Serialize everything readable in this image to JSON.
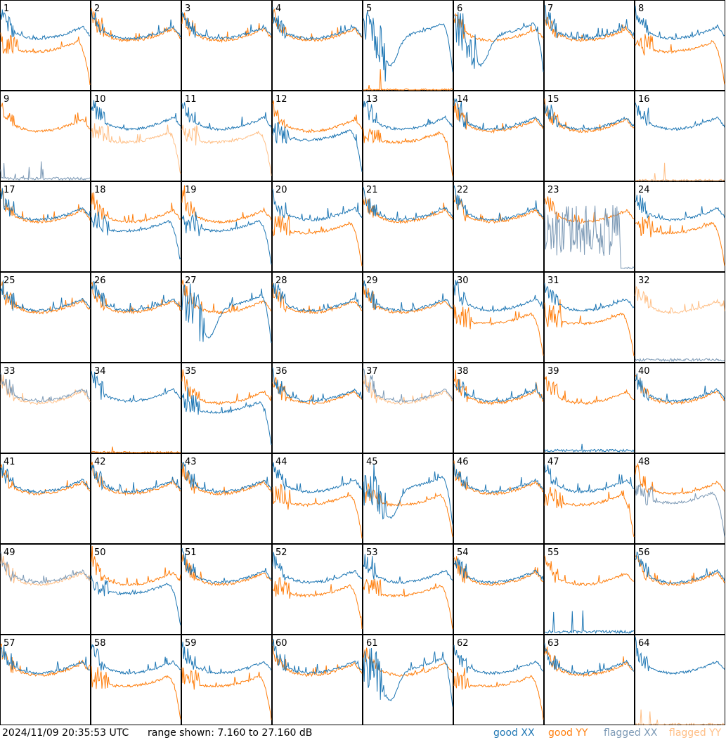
{
  "footer": {
    "timestamp": "2024/11/09 20:35:53 UTC",
    "range": "range shown: 7.160 to 27.160 dB"
  },
  "legend": {
    "good_xx": "good XX",
    "good_yy": "good YY",
    "flagged_xx": "flagged XX",
    "flagged_yy": "flagged YY"
  },
  "colors": {
    "good_xx": "#1f77b4",
    "good_yy": "#ff7f0e",
    "flagged_xx": "#7d9ab6",
    "flagged_yy": "#ffbf86"
  },
  "chart_data": {
    "type": "line",
    "layout": "8x8 small multiples",
    "ylim": [
      7.16,
      27.16
    ],
    "yunit": "dB",
    "panels": [
      {
        "label": "1",
        "xx": "good",
        "yy": "good",
        "xx_shape": "normal",
        "yy_shape": "low"
      },
      {
        "label": "2",
        "xx": "good",
        "yy": "good",
        "xx_shape": "normal",
        "yy_shape": "normal"
      },
      {
        "label": "3",
        "xx": "good",
        "yy": "good",
        "xx_shape": "normal",
        "yy_shape": "normal"
      },
      {
        "label": "4",
        "xx": "good",
        "yy": "good",
        "xx_shape": "normal",
        "yy_shape": "normal"
      },
      {
        "label": "5",
        "xx": "good",
        "yy": "good",
        "xx_shape": "dip",
        "yy_shape": "dead"
      },
      {
        "label": "6",
        "xx": "good",
        "yy": "good",
        "xx_shape": "dip",
        "yy_shape": "normal"
      },
      {
        "label": "7",
        "xx": "good",
        "yy": "good",
        "xx_shape": "normal",
        "yy_shape": "normal"
      },
      {
        "label": "8",
        "xx": "good",
        "yy": "good",
        "xx_shape": "normal",
        "yy_shape": "low"
      },
      {
        "label": "9",
        "xx": "flagged",
        "yy": "good",
        "xx_shape": "dead",
        "yy_shape": "normal"
      },
      {
        "label": "10",
        "xx": "good",
        "yy": "flagged",
        "xx_shape": "normal",
        "yy_shape": "low"
      },
      {
        "label": "11",
        "xx": "good",
        "yy": "flagged",
        "xx_shape": "normal",
        "yy_shape": "low"
      },
      {
        "label": "12",
        "xx": "good",
        "yy": "good",
        "xx_shape": "low",
        "yy_shape": "normal"
      },
      {
        "label": "13",
        "xx": "good",
        "yy": "good",
        "xx_shape": "normal",
        "yy_shape": "low"
      },
      {
        "label": "14",
        "xx": "good",
        "yy": "good",
        "xx_shape": "normal",
        "yy_shape": "normal"
      },
      {
        "label": "15",
        "xx": "good",
        "yy": "good",
        "xx_shape": "normal",
        "yy_shape": "normal"
      },
      {
        "label": "16",
        "xx": "good",
        "yy": "flagged",
        "xx_shape": "normal",
        "yy_shape": "dead"
      },
      {
        "label": "17",
        "xx": "good",
        "yy": "good",
        "xx_shape": "normal",
        "yy_shape": "normal"
      },
      {
        "label": "18",
        "xx": "good",
        "yy": "good",
        "xx_shape": "low",
        "yy_shape": "normal"
      },
      {
        "label": "19",
        "xx": "good",
        "yy": "good",
        "xx_shape": "low",
        "yy_shape": "normal"
      },
      {
        "label": "20",
        "xx": "good",
        "yy": "good",
        "xx_shape": "normal",
        "yy_shape": "low"
      },
      {
        "label": "21",
        "xx": "good",
        "yy": "good",
        "xx_shape": "normal",
        "yy_shape": "normal"
      },
      {
        "label": "22",
        "xx": "good",
        "yy": "good",
        "xx_shape": "normal",
        "yy_shape": "normal"
      },
      {
        "label": "23",
        "xx": "flagged",
        "yy": "good",
        "xx_shape": "noisy",
        "yy_shape": "normal"
      },
      {
        "label": "24",
        "xx": "good",
        "yy": "good",
        "xx_shape": "normal",
        "yy_shape": "low"
      },
      {
        "label": "25",
        "xx": "good",
        "yy": "good",
        "xx_shape": "normal",
        "yy_shape": "normal"
      },
      {
        "label": "26",
        "xx": "good",
        "yy": "good",
        "xx_shape": "normal",
        "yy_shape": "normal"
      },
      {
        "label": "27",
        "xx": "good",
        "yy": "good",
        "xx_shape": "dip",
        "yy_shape": "normal"
      },
      {
        "label": "28",
        "xx": "good",
        "yy": "good",
        "xx_shape": "normal",
        "yy_shape": "normal"
      },
      {
        "label": "29",
        "xx": "good",
        "yy": "good",
        "xx_shape": "normal",
        "yy_shape": "normal"
      },
      {
        "label": "30",
        "xx": "good",
        "yy": "good",
        "xx_shape": "normal",
        "yy_shape": "low"
      },
      {
        "label": "31",
        "xx": "good",
        "yy": "good",
        "xx_shape": "normal",
        "yy_shape": "low"
      },
      {
        "label": "32",
        "xx": "flagged",
        "yy": "flagged",
        "xx_shape": "dead",
        "yy_shape": "normal"
      },
      {
        "label": "33",
        "xx": "flagged",
        "yy": "flagged",
        "xx_shape": "normal",
        "yy_shape": "normal"
      },
      {
        "label": "34",
        "xx": "good",
        "yy": "good",
        "xx_shape": "normal",
        "yy_shape": "dead"
      },
      {
        "label": "35",
        "xx": "good",
        "yy": "good",
        "xx_shape": "low",
        "yy_shape": "normal"
      },
      {
        "label": "36",
        "xx": "good",
        "yy": "good",
        "xx_shape": "normal",
        "yy_shape": "normal"
      },
      {
        "label": "37",
        "xx": "flagged",
        "yy": "flagged",
        "xx_shape": "normal",
        "yy_shape": "normal"
      },
      {
        "label": "38",
        "xx": "good",
        "yy": "good",
        "xx_shape": "normal",
        "yy_shape": "normal"
      },
      {
        "label": "39",
        "xx": "good",
        "yy": "good",
        "xx_shape": "dead",
        "yy_shape": "normal"
      },
      {
        "label": "40",
        "xx": "good",
        "yy": "good",
        "xx_shape": "normal",
        "yy_shape": "normal"
      },
      {
        "label": "41",
        "xx": "good",
        "yy": "good",
        "xx_shape": "normal",
        "yy_shape": "normal"
      },
      {
        "label": "42",
        "xx": "good",
        "yy": "good",
        "xx_shape": "normal",
        "yy_shape": "normal"
      },
      {
        "label": "43",
        "xx": "good",
        "yy": "good",
        "xx_shape": "normal",
        "yy_shape": "normal"
      },
      {
        "label": "44",
        "xx": "good",
        "yy": "good",
        "xx_shape": "normal",
        "yy_shape": "low"
      },
      {
        "label": "45",
        "xx": "good",
        "yy": "good",
        "xx_shape": "dip",
        "yy_shape": "low"
      },
      {
        "label": "46",
        "xx": "good",
        "yy": "good",
        "xx_shape": "normal",
        "yy_shape": "normal"
      },
      {
        "label": "47",
        "xx": "good",
        "yy": "good",
        "xx_shape": "normal",
        "yy_shape": "low"
      },
      {
        "label": "48",
        "xx": "flagged",
        "yy": "good",
        "xx_shape": "low",
        "yy_shape": "normal"
      },
      {
        "label": "49",
        "xx": "flagged",
        "yy": "flagged",
        "xx_shape": "normal",
        "yy_shape": "normal"
      },
      {
        "label": "50",
        "xx": "good",
        "yy": "good",
        "xx_shape": "low",
        "yy_shape": "normal"
      },
      {
        "label": "51",
        "xx": "good",
        "yy": "good",
        "xx_shape": "normal",
        "yy_shape": "normal"
      },
      {
        "label": "52",
        "xx": "good",
        "yy": "good",
        "xx_shape": "normal",
        "yy_shape": "low"
      },
      {
        "label": "53",
        "xx": "good",
        "yy": "good",
        "xx_shape": "normal",
        "yy_shape": "low"
      },
      {
        "label": "54",
        "xx": "good",
        "yy": "good",
        "xx_shape": "normal",
        "yy_shape": "normal"
      },
      {
        "label": "55",
        "xx": "good",
        "yy": "good",
        "xx_shape": "dead",
        "yy_shape": "normal"
      },
      {
        "label": "56",
        "xx": "good",
        "yy": "good",
        "xx_shape": "normal",
        "yy_shape": "normal"
      },
      {
        "label": "57",
        "xx": "good",
        "yy": "good",
        "xx_shape": "normal",
        "yy_shape": "normal"
      },
      {
        "label": "58",
        "xx": "good",
        "yy": "good",
        "xx_shape": "normal",
        "yy_shape": "low"
      },
      {
        "label": "59",
        "xx": "good",
        "yy": "good",
        "xx_shape": "normal",
        "yy_shape": "low"
      },
      {
        "label": "60",
        "xx": "good",
        "yy": "good",
        "xx_shape": "normal",
        "yy_shape": "normal"
      },
      {
        "label": "61",
        "xx": "good",
        "yy": "good",
        "xx_shape": "dip",
        "yy_shape": "normal"
      },
      {
        "label": "62",
        "xx": "good",
        "yy": "good",
        "xx_shape": "normal",
        "yy_shape": "low"
      },
      {
        "label": "63",
        "xx": "good",
        "yy": "good",
        "xx_shape": "normal",
        "yy_shape": "normal"
      },
      {
        "label": "64",
        "xx": "good",
        "yy": "flagged",
        "xx_shape": "normal",
        "yy_shape": "dead"
      }
    ]
  }
}
